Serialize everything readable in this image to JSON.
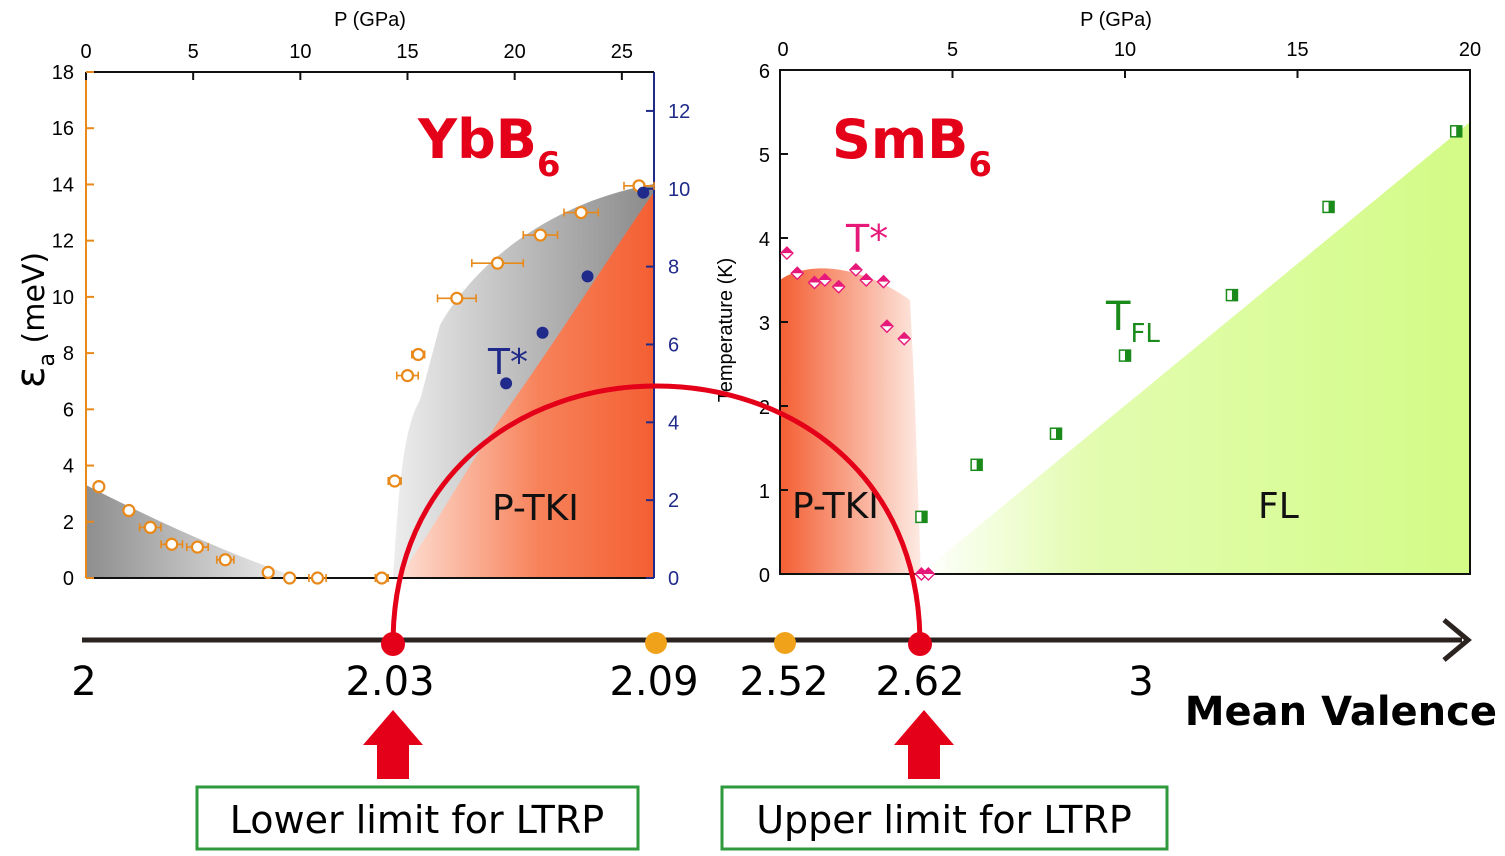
{
  "chart_data": [
    {
      "id": "ybb6",
      "type": "scatter",
      "title": "YbB6",
      "title_main": "YbB",
      "title_sub": "6",
      "top_axis": {
        "label": "P (GPa)",
        "range": [
          0,
          26.5
        ],
        "ticks": [
          0,
          5,
          10,
          15,
          20,
          25
        ]
      },
      "left_axis": {
        "label_symbol": "ε",
        "label_sub": "a",
        "label_rest": " (meV)",
        "range": [
          0,
          18
        ],
        "ticks": [
          0,
          2,
          4,
          6,
          8,
          10,
          12,
          14,
          16,
          18
        ],
        "color": "#e8891a"
      },
      "right_axis": {
        "label": "Temperature (K)",
        "range": [
          0,
          13
        ],
        "ticks": [
          0,
          2,
          4,
          6,
          8,
          10,
          12
        ],
        "color": "#1f2a8a"
      },
      "series": [
        {
          "name": "εa",
          "axis": "left",
          "marker": "open-circle",
          "color": "#e8891a",
          "points": [
            {
              "x": 0.6,
              "y": 3.25,
              "xerr": 0.2
            },
            {
              "x": 2.0,
              "y": 2.4,
              "xerr": 0.2
            },
            {
              "x": 3.0,
              "y": 1.8,
              "xerr": 0.5
            },
            {
              "x": 4.0,
              "y": 1.2,
              "xerr": 0.5
            },
            {
              "x": 5.2,
              "y": 1.1,
              "xerr": 0.5
            },
            {
              "x": 6.5,
              "y": 0.65,
              "xerr": 0.4
            },
            {
              "x": 8.5,
              "y": 0.2,
              "xerr": 0.2
            },
            {
              "x": 9.5,
              "y": 0.0,
              "xerr": 0.2
            },
            {
              "x": 10.8,
              "y": 0.0,
              "xerr": 0.4
            },
            {
              "x": 13.8,
              "y": 0.0,
              "xerr": 0.3
            },
            {
              "x": 14.4,
              "y": 3.45,
              "xerr": 0.3
            },
            {
              "x": 15.0,
              "y": 7.2,
              "xerr": 0.5
            },
            {
              "x": 15.5,
              "y": 7.95,
              "xerr": 0.3
            },
            {
              "x": 17.3,
              "y": 9.95,
              "xerr": 0.9
            },
            {
              "x": 19.2,
              "y": 11.2,
              "xerr": 1.2
            },
            {
              "x": 21.2,
              "y": 12.2,
              "xerr": 0.8
            },
            {
              "x": 23.1,
              "y": 13.0,
              "xerr": 0.8
            },
            {
              "x": 25.8,
              "y": 13.95,
              "xerr": 0.7
            }
          ]
        },
        {
          "name": "T*",
          "axis": "right",
          "marker": "filled-circle",
          "color": "#1f2a8a",
          "points": [
            {
              "x": 19.6,
              "y": 5.0
            },
            {
              "x": 21.3,
              "y": 6.3
            },
            {
              "x": 23.4,
              "y": 7.75
            },
            {
              "x": 26.0,
              "y": 9.9
            }
          ]
        }
      ],
      "labels": {
        "tstar": "T*",
        "region": "P-TKI"
      }
    },
    {
      "id": "smb6",
      "type": "scatter",
      "title": "SmB6",
      "title_main": "SmB",
      "title_sub": "6",
      "top_axis": {
        "label": "P (GPa)",
        "range": [
          0,
          20
        ],
        "ticks": [
          0,
          5,
          10,
          15,
          20
        ]
      },
      "left_axis": {
        "label": "Temperature (K)",
        "range": [
          0,
          6
        ],
        "ticks": [
          0,
          1,
          2,
          3,
          4,
          5,
          6
        ]
      },
      "series": [
        {
          "name": "T*",
          "marker": "half-diamond",
          "color": "#e6197a",
          "points": [
            {
              "x": 0.2,
              "y": 3.82
            },
            {
              "x": 0.5,
              "y": 3.58
            },
            {
              "x": 1.0,
              "y": 3.47
            },
            {
              "x": 1.3,
              "y": 3.5
            },
            {
              "x": 1.7,
              "y": 3.42
            },
            {
              "x": 2.2,
              "y": 3.62
            },
            {
              "x": 2.5,
              "y": 3.5
            },
            {
              "x": 3.0,
              "y": 3.48
            },
            {
              "x": 3.1,
              "y": 2.95
            },
            {
              "x": 3.6,
              "y": 2.8
            },
            {
              "x": 4.1,
              "y": 0.0
            },
            {
              "x": 4.3,
              "y": 0.0
            }
          ]
        },
        {
          "name": "TFL",
          "marker": "half-square",
          "color": "#1a8a1a",
          "points": [
            {
              "x": 4.1,
              "y": 0.68
            },
            {
              "x": 5.7,
              "y": 1.3
            },
            {
              "x": 8.0,
              "y": 1.67
            },
            {
              "x": 10.0,
              "y": 2.6
            },
            {
              "x": 13.1,
              "y": 3.32
            },
            {
              "x": 15.9,
              "y": 4.37
            },
            {
              "x": 19.6,
              "y": 5.27
            }
          ]
        }
      ],
      "labels": {
        "tstar": "T*",
        "tfl_main": "T",
        "tfl_sub": "FL",
        "region_tki": "P-TKI",
        "region_fl": "FL"
      }
    },
    {
      "id": "valence-axis",
      "type": "number-line",
      "title": "Mean Valence",
      "tick_labels": [
        "2",
        "2.03",
        "2.09",
        "2.52",
        "2.62",
        "3"
      ],
      "red_points": [
        "2.03",
        "2.62"
      ],
      "orange_points": [
        "2.09",
        "2.52"
      ]
    }
  ],
  "annotations": {
    "lower_limit": "Lower limit for LTRP",
    "upper_limit": "Upper limit for LTRP"
  },
  "colors": {
    "orange": "#e8891a",
    "navy": "#1f2a8a",
    "red": "#e50019",
    "pink": "#e6197a",
    "green": "#1a8a1a",
    "gray": "#8a8a8a",
    "salmon": "#f46a3e",
    "lime": "#d6fb8c",
    "box_border": "#2e9a3b"
  }
}
